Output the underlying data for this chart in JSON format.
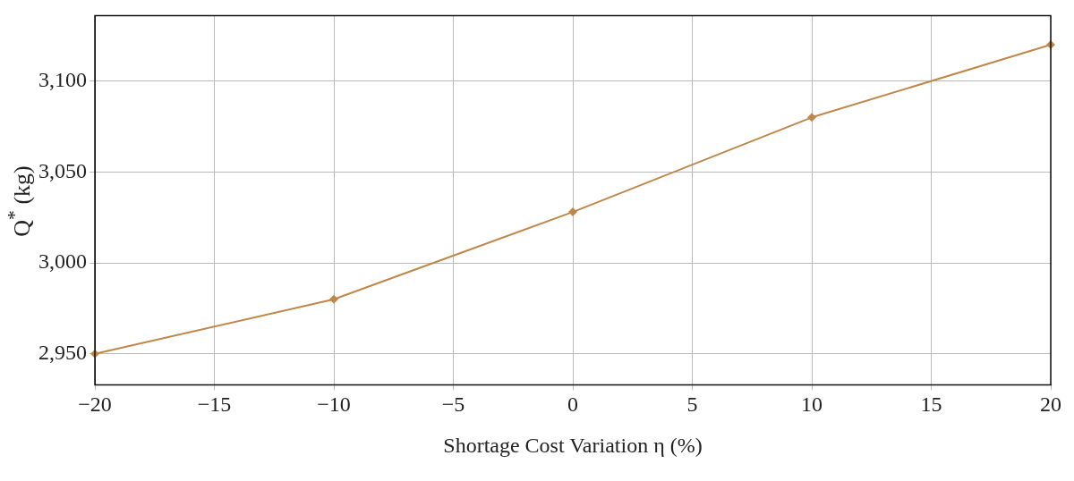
{
  "chart_data": {
    "type": "line",
    "xlabel": "Shortage Cost Variation η (%)",
    "ylabel": "Q$^{*}$ (kg)",
    "x": [
      -20,
      -10,
      0,
      10,
      20
    ],
    "series": [
      {
        "color": "#c0874a",
        "values": [
          2950,
          2980,
          3028,
          3080,
          3120
        ]
      }
    ],
    "xlim": [
      -20,
      20
    ],
    "xticks": [
      {
        "value": -20,
        "label": "−20"
      },
      {
        "value": -15,
        "label": "−15"
      },
      {
        "value": -10,
        "label": "−10"
      },
      {
        "value": -5,
        "label": "−5"
      },
      0,
      5,
      10,
      15,
      20
    ],
    "ylim": [
      2933,
      3136
    ],
    "yticks": [
      {
        "value": 2950,
        "label": "2,950"
      },
      {
        "value": 3000,
        "label": "3,000"
      },
      {
        "value": 3050,
        "label": "3,050"
      },
      {
        "value": 3100,
        "label": "3,100"
      }
    ],
    "grid": true,
    "legend": false,
    "marker": "diamond",
    "line_style": "solid"
  }
}
